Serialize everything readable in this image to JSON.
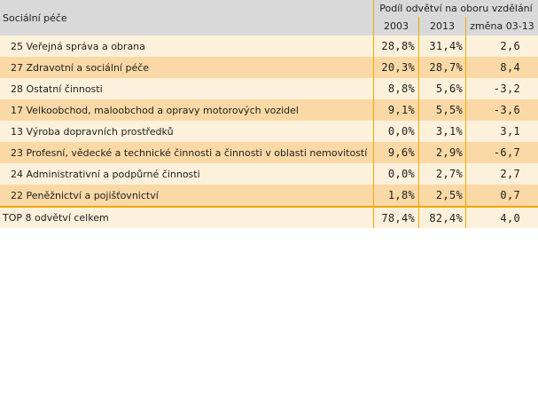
{
  "table": {
    "section_label": "Sociální péče",
    "group_header": "Podíl odvětví na oboru vzdělání",
    "columns": [
      "2003",
      "2013",
      "změna 03-13"
    ],
    "rows": [
      {
        "name": "25 Veřejná správa a obrana",
        "v2003": "28,8%",
        "v2013": "31,4%",
        "change": "2,6"
      },
      {
        "name": "27 Zdravotní a sociální péče",
        "v2003": "20,3%",
        "v2013": "28,7%",
        "change": "8,4"
      },
      {
        "name": "28 Ostatní činnosti",
        "v2003": "8,8%",
        "v2013": "5,6%",
        "change": "-3,2"
      },
      {
        "name": "17 Velkoobchod, maloobchod a opravy motorových vozidel",
        "v2003": "9,1%",
        "v2013": "5,5%",
        "change": "-3,6"
      },
      {
        "name": "13 Výroba dopravních prostředků",
        "v2003": "0,0%",
        "v2013": "3,1%",
        "change": "3,1"
      },
      {
        "name": "23 Profesní, vědecké a technické činnosti a činnosti v oblasti nemovitostí",
        "v2003": "9,6%",
        "v2013": "2,9%",
        "change": "-6,7"
      },
      {
        "name": "24 Administrativní a podpůrné činnosti",
        "v2003": "0,0%",
        "v2013": "2,7%",
        "change": "2,7"
      },
      {
        "name": "22 Peněžnictví a pojišťovnictví",
        "v2003": "1,8%",
        "v2013": "2,5%",
        "change": "0,7"
      }
    ],
    "total": {
      "name": "TOP 8 odvětví celkem",
      "v2003": "78,4%",
      "v2013": "82,4%",
      "change": "4,0"
    },
    "colors": {
      "header_bg": "#d9d9d9",
      "row_light": "#fdf1dc",
      "row_dark": "#fad9a6",
      "accent_line": "#f0a800"
    }
  }
}
